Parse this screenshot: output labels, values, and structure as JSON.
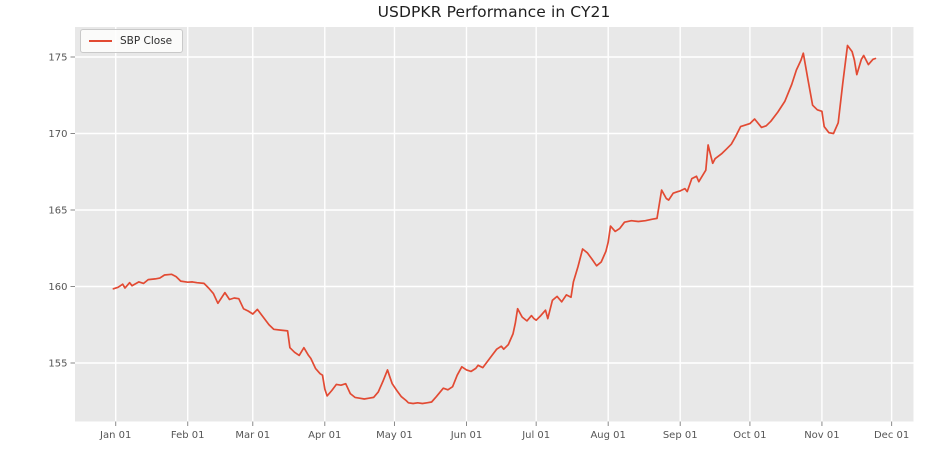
{
  "title": "USDPKR Performance in CY21",
  "legend": {
    "label": "SBP Close",
    "position": "upper left"
  },
  "colors": {
    "line": "#E24A33",
    "figure_background": "#ffffff",
    "plot_background": "#e8e8e8",
    "gridline": "#ffffff",
    "tick_mark": "#8a8a8a",
    "tick_label": "#555555",
    "title_text": "#1f1f1f"
  },
  "chart_data": {
    "type": "line",
    "title": "USDPKR Performance in CY21",
    "xlabel": "",
    "ylabel": "",
    "grid": true,
    "legend_position": "upper left",
    "y_ticks": [
      155,
      160,
      165,
      170,
      175
    ],
    "ylim": [
      151.2,
      176.95
    ],
    "x_ticks": [
      {
        "day": 1,
        "label": "Jan 01"
      },
      {
        "day": 32,
        "label": "Feb 01"
      },
      {
        "day": 60,
        "label": "Mar 01"
      },
      {
        "day": 91,
        "label": "Apr 01"
      },
      {
        "day": 121,
        "label": "May 01"
      },
      {
        "day": 152,
        "label": "Jun 01"
      },
      {
        "day": 182,
        "label": "Jul 01"
      },
      {
        "day": 213,
        "label": "Aug 01"
      },
      {
        "day": 244,
        "label": "Sep 01"
      },
      {
        "day": 274,
        "label": "Oct 01"
      },
      {
        "day": 305,
        "label": "Nov 01"
      },
      {
        "day": 335,
        "label": "Dec 01"
      }
    ],
    "series": [
      {
        "name": "SBP Close",
        "color": "#E24A33",
        "x_unit": "day-of-year-2021",
        "points": [
          [
            0,
            159.85
          ],
          [
            2,
            159.95
          ],
          [
            4,
            160.15
          ],
          [
            5,
            159.9
          ],
          [
            7,
            160.25
          ],
          [
            8,
            160.05
          ],
          [
            11,
            160.3
          ],
          [
            13,
            160.2
          ],
          [
            15,
            160.45
          ],
          [
            18,
            160.5
          ],
          [
            20,
            160.55
          ],
          [
            22,
            160.75
          ],
          [
            25,
            160.8
          ],
          [
            27,
            160.65
          ],
          [
            29,
            160.35
          ],
          [
            32,
            160.28
          ],
          [
            34,
            160.3
          ],
          [
            36,
            160.25
          ],
          [
            39,
            160.2
          ],
          [
            41,
            159.9
          ],
          [
            43,
            159.55
          ],
          [
            45,
            158.9
          ],
          [
            48,
            159.6
          ],
          [
            50,
            159.15
          ],
          [
            52,
            159.25
          ],
          [
            54,
            159.2
          ],
          [
            56,
            158.55
          ],
          [
            58,
            158.4
          ],
          [
            60,
            158.2
          ],
          [
            62,
            158.5
          ],
          [
            64,
            158.1
          ],
          [
            67,
            157.5
          ],
          [
            69,
            157.2
          ],
          [
            72,
            157.15
          ],
          [
            75,
            157.1
          ],
          [
            76,
            156.0
          ],
          [
            78,
            155.7
          ],
          [
            80,
            155.5
          ],
          [
            82,
            156.0
          ],
          [
            84,
            155.5
          ],
          [
            85,
            155.3
          ],
          [
            87,
            154.65
          ],
          [
            89,
            154.3
          ],
          [
            90,
            154.2
          ],
          [
            91,
            153.3
          ],
          [
            92,
            152.85
          ],
          [
            94,
            153.2
          ],
          [
            96,
            153.6
          ],
          [
            98,
            153.55
          ],
          [
            100,
            153.65
          ],
          [
            102,
            153.0
          ],
          [
            104,
            152.75
          ],
          [
            106,
            152.7
          ],
          [
            108,
            152.65
          ],
          [
            110,
            152.7
          ],
          [
            112,
            152.75
          ],
          [
            114,
            153.1
          ],
          [
            116,
            153.8
          ],
          [
            118,
            154.55
          ],
          [
            119,
            154.1
          ],
          [
            120,
            153.65
          ],
          [
            122,
            153.2
          ],
          [
            124,
            152.8
          ],
          [
            126,
            152.55
          ],
          [
            127,
            152.4
          ],
          [
            129,
            152.35
          ],
          [
            131,
            152.4
          ],
          [
            133,
            152.35
          ],
          [
            135,
            152.4
          ],
          [
            137,
            152.45
          ],
          [
            139,
            152.8
          ],
          [
            142,
            153.35
          ],
          [
            144,
            153.25
          ],
          [
            146,
            153.45
          ],
          [
            148,
            154.2
          ],
          [
            150,
            154.75
          ],
          [
            152,
            154.55
          ],
          [
            154,
            154.45
          ],
          [
            156,
            154.65
          ],
          [
            157,
            154.85
          ],
          [
            159,
            154.7
          ],
          [
            161,
            155.1
          ],
          [
            163,
            155.5
          ],
          [
            165,
            155.9
          ],
          [
            167,
            156.1
          ],
          [
            168,
            155.9
          ],
          [
            170,
            156.2
          ],
          [
            172,
            156.9
          ],
          [
            173,
            157.6
          ],
          [
            174,
            158.55
          ],
          [
            176,
            158.0
          ],
          [
            178,
            157.75
          ],
          [
            180,
            158.1
          ],
          [
            181,
            157.9
          ],
          [
            182,
            157.8
          ],
          [
            184,
            158.1
          ],
          [
            186,
            158.45
          ],
          [
            187,
            157.9
          ],
          [
            189,
            159.1
          ],
          [
            191,
            159.35
          ],
          [
            193,
            159.0
          ],
          [
            195,
            159.45
          ],
          [
            197,
            159.3
          ],
          [
            198,
            160.3
          ],
          [
            200,
            161.3
          ],
          [
            202,
            162.45
          ],
          [
            204,
            162.2
          ],
          [
            206,
            161.8
          ],
          [
            208,
            161.35
          ],
          [
            210,
            161.6
          ],
          [
            212,
            162.3
          ],
          [
            213,
            162.9
          ],
          [
            214,
            163.95
          ],
          [
            216,
            163.6
          ],
          [
            218,
            163.8
          ],
          [
            220,
            164.2
          ],
          [
            223,
            164.3
          ],
          [
            226,
            164.25
          ],
          [
            229,
            164.3
          ],
          [
            232,
            164.4
          ],
          [
            234,
            164.45
          ],
          [
            236,
            166.3
          ],
          [
            238,
            165.75
          ],
          [
            239,
            165.65
          ],
          [
            241,
            166.1
          ],
          [
            243,
            166.2
          ],
          [
            244,
            166.25
          ],
          [
            246,
            166.4
          ],
          [
            247,
            166.2
          ],
          [
            249,
            167.05
          ],
          [
            251,
            167.2
          ],
          [
            252,
            166.85
          ],
          [
            255,
            167.6
          ],
          [
            256,
            169.25
          ],
          [
            258,
            168.05
          ],
          [
            259,
            168.35
          ],
          [
            262,
            168.7
          ],
          [
            264,
            169.0
          ],
          [
            266,
            169.3
          ],
          [
            268,
            169.85
          ],
          [
            270,
            170.45
          ],
          [
            272,
            170.55
          ],
          [
            274,
            170.65
          ],
          [
            276,
            170.95
          ],
          [
            279,
            170.4
          ],
          [
            281,
            170.5
          ],
          [
            283,
            170.8
          ],
          [
            286,
            171.4
          ],
          [
            289,
            172.1
          ],
          [
            292,
            173.2
          ],
          [
            294,
            174.15
          ],
          [
            296,
            174.8
          ],
          [
            297,
            175.25
          ],
          [
            299,
            173.5
          ],
          [
            301,
            171.85
          ],
          [
            303,
            171.55
          ],
          [
            305,
            171.45
          ],
          [
            306,
            170.45
          ],
          [
            308,
            170.05
          ],
          [
            310,
            170.0
          ],
          [
            312,
            170.7
          ],
          [
            314,
            173.3
          ],
          [
            316,
            175.75
          ],
          [
            318,
            175.35
          ],
          [
            319,
            174.8
          ],
          [
            320,
            173.85
          ],
          [
            322,
            174.85
          ],
          [
            323,
            175.1
          ],
          [
            325,
            174.5
          ],
          [
            327,
            174.85
          ],
          [
            328,
            174.9
          ]
        ]
      }
    ]
  }
}
